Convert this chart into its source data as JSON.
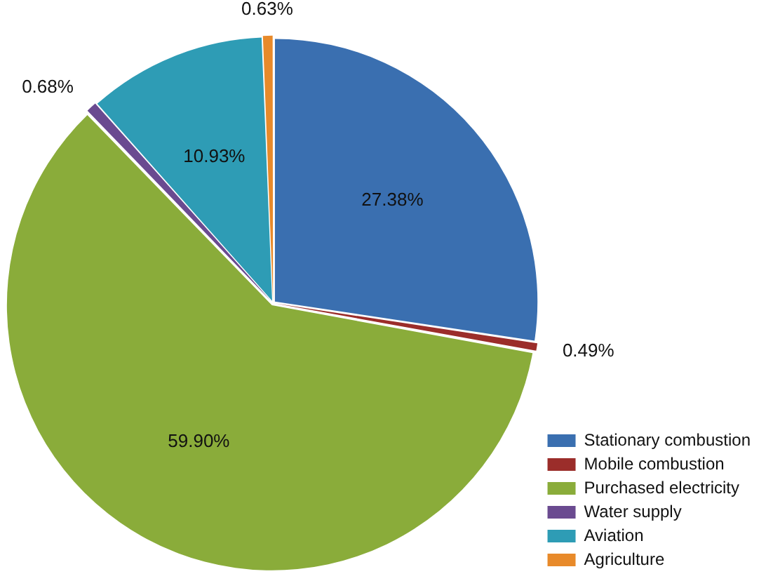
{
  "chart_data": {
    "type": "pie",
    "categories": [
      "Stationary combustion",
      "Mobile combustion",
      "Purchased electricity",
      "Water supply",
      "Aviation",
      "Agriculture"
    ],
    "values": [
      27.38,
      0.49,
      59.9,
      0.68,
      10.93,
      0.63
    ],
    "colors": [
      "#3a6fb0",
      "#9b2d2a",
      "#8aac3a",
      "#6a4a90",
      "#2e9cb5",
      "#e88a2a"
    ],
    "value_labels": [
      "27.38%",
      "0.49%",
      "59.90%",
      "0.68%",
      "10.93%",
      "0.63%"
    ],
    "legend": "bottom right"
  }
}
